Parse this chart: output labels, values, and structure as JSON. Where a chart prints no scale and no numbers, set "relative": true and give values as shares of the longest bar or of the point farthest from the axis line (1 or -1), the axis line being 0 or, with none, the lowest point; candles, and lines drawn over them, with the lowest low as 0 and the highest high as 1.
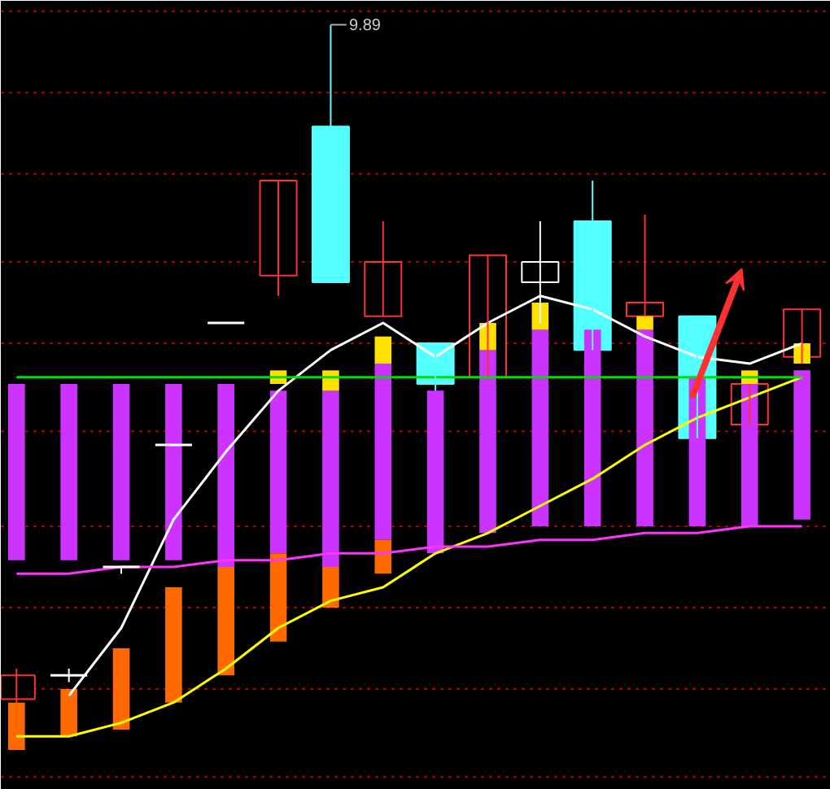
{
  "chart_data": {
    "type": "candlestick",
    "relative": true,
    "ref_lines": [
      {
        "axis": "y",
        "value": 1.02,
        "color": "#b00000",
        "line_style": "dotted"
      },
      {
        "axis": "y",
        "value": 0.9,
        "color": "#b00000",
        "line_style": "dotted"
      },
      {
        "axis": "y",
        "value": 0.78,
        "color": "#b00000",
        "line_style": "dotted"
      },
      {
        "axis": "y",
        "value": 0.65,
        "color": "#b00000",
        "line_style": "dotted"
      },
      {
        "axis": "y",
        "value": 0.53,
        "color": "#b00000",
        "line_style": "dotted"
      },
      {
        "axis": "y",
        "value": 0.4,
        "color": "#b00000",
        "line_style": "dotted"
      },
      {
        "axis": "y",
        "value": 0.26,
        "color": "#b00000",
        "line_style": "dotted"
      },
      {
        "axis": "y",
        "value": 0.14,
        "color": "#b00000",
        "line_style": "dotted"
      },
      {
        "axis": "y",
        "value": 0.02,
        "color": "#b00000",
        "line_style": "dotted"
      },
      {
        "axis": "y",
        "value": -0.11,
        "color": "#b00000",
        "line_style": "dotted"
      }
    ],
    "categories": [
      null,
      null,
      null,
      null,
      null,
      null,
      null,
      null,
      null,
      null,
      null,
      null,
      null,
      null,
      null,
      null
    ],
    "ohlc": [
      [
        0.005,
        0.05,
        0,
        0.04
      ],
      [
        0.04,
        0.05,
        0.03,
        0.04
      ],
      [
        0.2,
        0.2,
        0.19,
        0.2
      ],
      [
        0.38,
        0.38,
        0.38,
        0.38
      ],
      [
        0.56,
        0.56,
        0.56,
        0.56
      ],
      [
        0.63,
        0.77,
        0.6,
        0.77
      ],
      [
        0.85,
        1.0,
        0.62,
        0.62
      ],
      [
        0.57,
        0.71,
        0.57,
        0.65
      ],
      [
        0.53,
        0.53,
        0.46,
        0.47
      ],
      [
        0.48,
        0.66,
        0.48,
        0.66
      ],
      [
        0.62,
        0.71,
        0.56,
        0.65
      ],
      [
        0.71,
        0.77,
        0.52,
        0.52
      ],
      [
        0.57,
        0.72,
        0.57,
        0.59
      ],
      [
        0.57,
        0.57,
        0.39,
        0.39
      ],
      [
        0.41,
        0.47,
        0.41,
        0.47
      ],
      [
        0.51,
        0.58,
        0.5,
        0.58
      ]
    ],
    "colors": [
      "#ff3232",
      "#ffffff",
      "#ffffff",
      "#ffffff",
      "#ffffff",
      "#ff3232",
      "#54ffff",
      "#ff3232",
      "#54ffff",
      "#ff3232",
      "#ffffff",
      "#54ffff",
      "#ff3232",
      "#54ffff",
      "#ff3232",
      "#ff3232"
    ],
    "series": [
      {
        "type": "bar",
        "color": "#cc33ff",
        "base": [
          0.21,
          0.21,
          0.21,
          0.21,
          0.2,
          0.22,
          0.2,
          0.24,
          0.22,
          0.25,
          0.26,
          0.26,
          0.26,
          0.26,
          0.26,
          0.27
        ],
        "values": [
          0.26,
          0.26,
          0.26,
          0.26,
          0.27,
          0.24,
          0.26,
          0.26,
          0.24,
          0.27,
          0.29,
          0.29,
          0.29,
          0.22,
          0.21,
          0.22
        ]
      },
      {
        "type": "bar",
        "color": "#ff6a00",
        "base": [
          -0.07,
          -0.05,
          -0.04,
          0,
          0.04,
          0.09,
          0.14,
          0.19,
          null,
          null,
          null,
          null,
          null,
          null,
          null,
          null
        ],
        "values": [
          0.07,
          0.07,
          0.12,
          0.17,
          0.16,
          0.13,
          0.06,
          0.05,
          null,
          null,
          null,
          null,
          null,
          null,
          null,
          null
        ]
      },
      {
        "type": "bar",
        "color": "#ffe000",
        "base": [
          null,
          null,
          null,
          null,
          null,
          0.47,
          0.46,
          0.5,
          null,
          0.52,
          0.55,
          null,
          0.55,
          null,
          0.47,
          0.5
        ],
        "values": [
          null,
          null,
          null,
          null,
          null,
          0.02,
          0.03,
          0.04,
          null,
          0.04,
          0.04,
          null,
          0.02,
          null,
          0.02,
          0.03
        ]
      },
      {
        "type": "line",
        "color": "#ffffff",
        "values": [
          null,
          0.01,
          0.11,
          0.27,
          0.37,
          0.46,
          0.52,
          0.56,
          0.51,
          0.56,
          0.6,
          0.58,
          0.54,
          0.51,
          0.5,
          0.53
        ]
      },
      {
        "type": "line",
        "color": "#ffff00",
        "values": [
          -0.05,
          -0.05,
          -0.03,
          0,
          0.05,
          0.11,
          0.15,
          0.17,
          0.22,
          0.25,
          0.29,
          0.33,
          0.38,
          0.42,
          0.45,
          0.48
        ]
      },
      {
        "type": "line",
        "color": "#00e000",
        "values": [
          0.48,
          0.48,
          0.48,
          0.48,
          0.48,
          0.48,
          0.48,
          0.48,
          0.48,
          0.48,
          0.48,
          0.48,
          0.48,
          0.48,
          0.48,
          0.48
        ]
      },
      {
        "type": "line",
        "color": "#ff33ff",
        "values": [
          0.19,
          0.19,
          0.2,
          0.2,
          0.21,
          0.21,
          0.22,
          0.22,
          0.23,
          0.23,
          0.24,
          0.24,
          0.25,
          0.25,
          0.26,
          0.26
        ]
      }
    ],
    "annotations": [
      "9.89"
    ]
  }
}
